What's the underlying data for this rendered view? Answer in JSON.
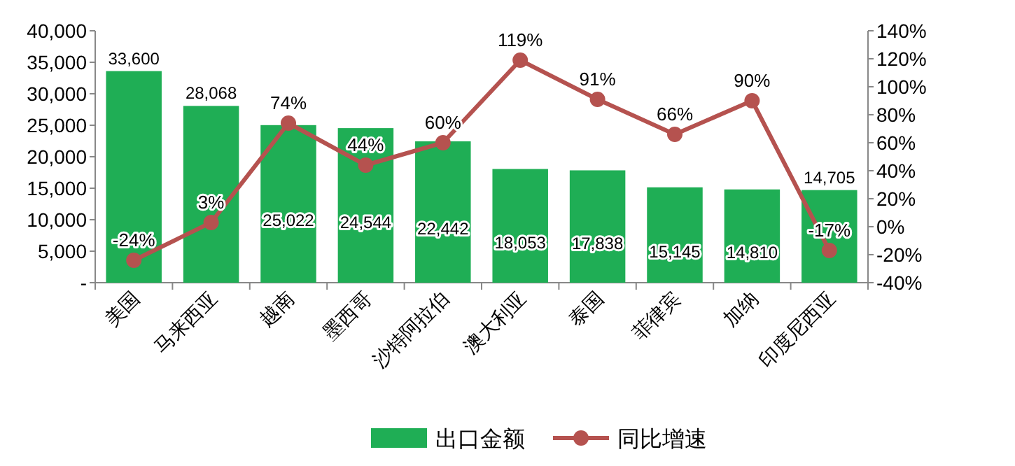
{
  "chart_data": {
    "type": "bar",
    "categories": [
      "美国",
      "马来西亚",
      "越南",
      "墨西哥",
      "沙特阿拉伯",
      "澳大利亚",
      "泰国",
      "菲律宾",
      "加纳",
      "印度尼西亚"
    ],
    "series": [
      {
        "name": "出口金额",
        "color": "#1fae55",
        "values": [
          33600,
          28068,
          25022,
          24544,
          22442,
          18053,
          17838,
          15145,
          14810,
          14705
        ],
        "value_labels": [
          "33,600",
          "28,068",
          "25,022",
          "24,544",
          "22,442",
          "18,053",
          "17,838",
          "15,145",
          "14,810",
          "14,705"
        ]
      },
      {
        "name": "同比增速",
        "type": "line",
        "axis": "y2",
        "color": "#b5524f",
        "values": [
          -24,
          3,
          74,
          44,
          60,
          119,
          91,
          66,
          90,
          -17
        ],
        "value_labels": [
          "-24%",
          "3%",
          "74%",
          "44%",
          "60%",
          "119%",
          "91%",
          "66%",
          "90%",
          "-17%"
        ]
      }
    ],
    "ylim": [
      0,
      40000
    ],
    "yticks": [
      {
        "value": 0,
        "label": "-"
      },
      {
        "value": 5000,
        "label": "5,000"
      },
      {
        "value": 10000,
        "label": "10,000"
      },
      {
        "value": 15000,
        "label": "15,000"
      },
      {
        "value": 20000,
        "label": "20,000"
      },
      {
        "value": 25000,
        "label": "25,000"
      },
      {
        "value": 30000,
        "label": "30,000"
      },
      {
        "value": 35000,
        "label": "35,000"
      },
      {
        "value": 40000,
        "label": "40,000"
      }
    ],
    "y2lim": [
      -40,
      140
    ],
    "y2ticks": [
      {
        "value": -40,
        "label": "-40%"
      },
      {
        "value": -20,
        "label": "-20%"
      },
      {
        "value": 0,
        "label": "0%"
      },
      {
        "value": 20,
        "label": "20%"
      },
      {
        "value": 40,
        "label": "40%"
      },
      {
        "value": 60,
        "label": "60%"
      },
      {
        "value": 80,
        "label": "80%"
      },
      {
        "value": 100,
        "label": "100%"
      },
      {
        "value": 120,
        "label": "120%"
      },
      {
        "value": 140,
        "label": "140%"
      }
    ],
    "legend": "bottom",
    "marker": "circle",
    "line_style": "solid"
  }
}
